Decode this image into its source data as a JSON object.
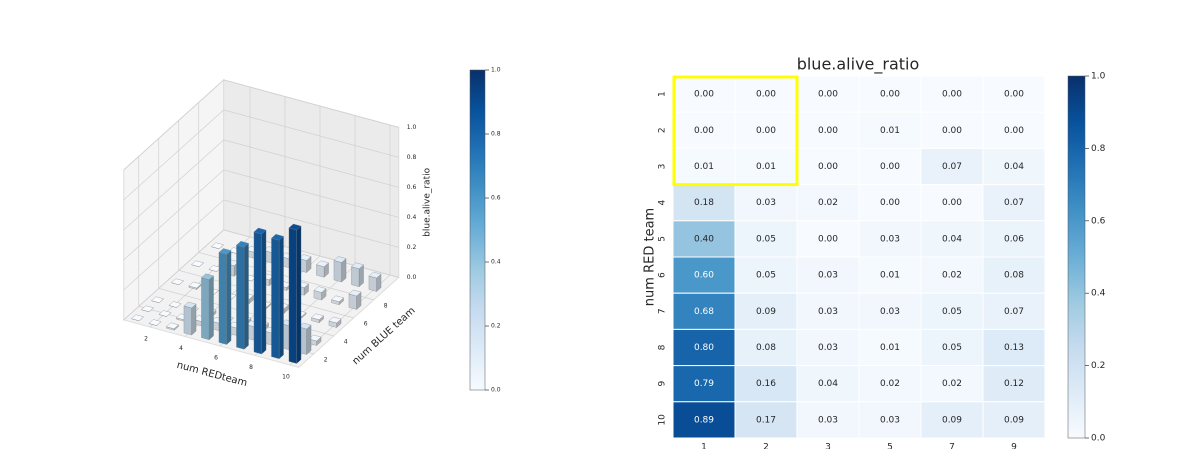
{
  "chart_data": [
    {
      "type": "bar3d",
      "xlabel": "num REDteam",
      "ylabel": "num BLUE team",
      "zlabel": "blue.alive_ratio",
      "xticks": [
        2,
        4,
        6,
        8,
        10
      ],
      "yticks": [
        2,
        4,
        6,
        8
      ],
      "zlim": [
        0,
        1
      ],
      "zticks": [
        {
          "value": 0,
          "label": "0.0"
        },
        {
          "value": 0.2,
          "label": "0.2"
        },
        {
          "value": 0.4,
          "label": "0.4"
        },
        {
          "value": 0.6,
          "label": "0.6"
        },
        {
          "value": 0.8,
          "label": "0.8"
        },
        {
          "value": 1,
          "label": "1.0"
        }
      ],
      "colorbar_ticks": [
        {
          "value": 0,
          "label": "0.0"
        },
        {
          "value": 0.2,
          "label": "0.2"
        },
        {
          "value": 0.4,
          "label": "0.4"
        },
        {
          "value": 0.6,
          "label": "0.6"
        },
        {
          "value": 0.8,
          "label": "0.8"
        },
        {
          "value": 1,
          "label": "1.0"
        }
      ],
      "colormap": "Blues"
    },
    {
      "type": "heatmap",
      "title": "blue.alive_ratio",
      "ylabel": "num RED team",
      "rows": [
        1,
        2,
        3,
        4,
        5,
        6,
        7,
        8,
        9,
        10
      ],
      "columns": [
        1,
        2,
        3,
        5,
        7,
        9
      ],
      "values": [
        [
          0,
          0,
          0,
          0,
          0,
          0
        ],
        [
          0,
          0,
          0,
          0.01,
          0,
          0
        ],
        [
          0.01,
          0.01,
          0,
          0,
          0.07,
          0.04
        ],
        [
          0.18,
          0.03,
          0.02,
          0,
          0,
          0.07
        ],
        [
          0.4,
          0.05,
          0,
          0.03,
          0.04,
          0.06
        ],
        [
          0.6,
          0.05,
          0.03,
          0.01,
          0.02,
          0.08
        ],
        [
          0.68,
          0.09,
          0.03,
          0.03,
          0.05,
          0.07
        ],
        [
          0.8,
          0.08,
          0.03,
          0.01,
          0.05,
          0.13
        ],
        [
          0.79,
          0.16,
          0.04,
          0.02,
          0.02,
          0.12
        ],
        [
          0.89,
          0.17,
          0.03,
          0.03,
          0.09,
          0.09
        ]
      ],
      "value_labels": [
        [
          "0.00",
          "0.00",
          "0.00",
          "0.00",
          "0.00",
          "0.00"
        ],
        [
          "0.00",
          "0.00",
          "0.00",
          "0.01",
          "0.00",
          "0.00"
        ],
        [
          "0.01",
          "0.01",
          "0.00",
          "0.00",
          "0.07",
          "0.04"
        ],
        [
          "0.18",
          "0.03",
          "0.02",
          "0.00",
          "0.00",
          "0.07"
        ],
        [
          "0.40",
          "0.05",
          "0.00",
          "0.03",
          "0.04",
          "0.06"
        ],
        [
          "0.60",
          "0.05",
          "0.03",
          "0.01",
          "0.02",
          "0.08"
        ],
        [
          "0.68",
          "0.09",
          "0.03",
          "0.03",
          "0.05",
          "0.07"
        ],
        [
          "0.80",
          "0.08",
          "0.03",
          "0.01",
          "0.05",
          "0.13"
        ],
        [
          "0.79",
          "0.16",
          "0.04",
          "0.02",
          "0.02",
          "0.12"
        ],
        [
          "0.89",
          "0.17",
          "0.03",
          "0.03",
          "0.09",
          "0.09"
        ]
      ],
      "clim": [
        0,
        1
      ],
      "colorbar_ticks": [
        {
          "value": 0,
          "label": "0.0"
        },
        {
          "value": 0.2,
          "label": "0.2"
        },
        {
          "value": 0.4,
          "label": "0.4"
        },
        {
          "value": 0.6,
          "label": "0.6"
        },
        {
          "value": 0.8,
          "label": "0.8"
        },
        {
          "value": 1,
          "label": "1.0"
        }
      ],
      "colormap": "Blues",
      "highlight": "yellow"
    }
  ]
}
